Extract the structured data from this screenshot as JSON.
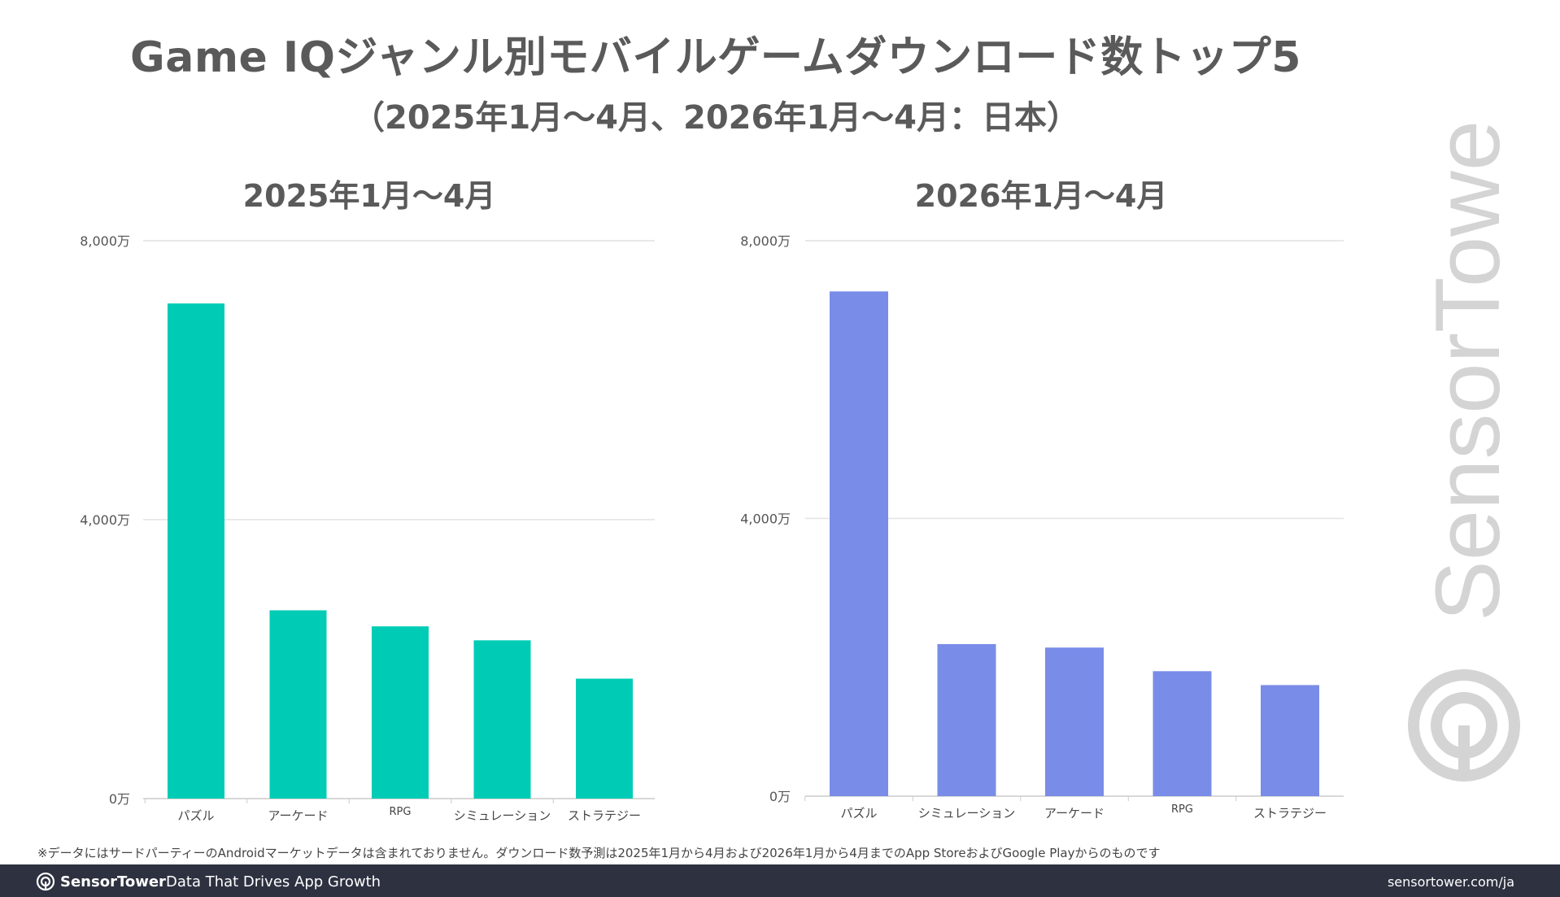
{
  "header": {
    "title": "Game IQジャンル別モバイルゲームダウンロード数トップ5",
    "subtitle": "（2025年1月～4月、2026年1月～4月：日本）"
  },
  "colors": {
    "series_2025": "#00ccb6",
    "series_2026": "#798ce8",
    "footer_bg": "#2d3140"
  },
  "chart_data": [
    {
      "type": "bar",
      "title": "2025年1月～4月",
      "categories": [
        "パズル",
        "アーケード",
        "RPG",
        "シミュレーション",
        "ストラテジー"
      ],
      "values": [
        7100,
        2700,
        2470,
        2270,
        1720
      ],
      "ylim": [
        0,
        8000
      ],
      "yticks": [
        "0万",
        "4,000万",
        "8,000万"
      ],
      "grid": true
    },
    {
      "type": "bar",
      "title": "2026年1月～4月",
      "categories": [
        "パズル",
        "シミュレーション",
        "アーケード",
        "RPG",
        "ストラテジー"
      ],
      "values": [
        7270,
        2190,
        2140,
        1800,
        1600
      ],
      "ylim": [
        0,
        8000
      ],
      "yticks": [
        "0万",
        "4,000万",
        "8,000万"
      ],
      "grid": true
    }
  ],
  "watermark": "SensorTower",
  "footnote": "※データにはサードパーティーのAndroidマーケットデータは含まれておりません。ダウンロード数予測は2025年1月から4月および2026年1月から4月までのApp StoreおよびGoogle Playからのものです",
  "footer": {
    "brand": "SensorTower",
    "tagline": "Data That Drives App Growth",
    "url": "sensortower.com/ja"
  }
}
